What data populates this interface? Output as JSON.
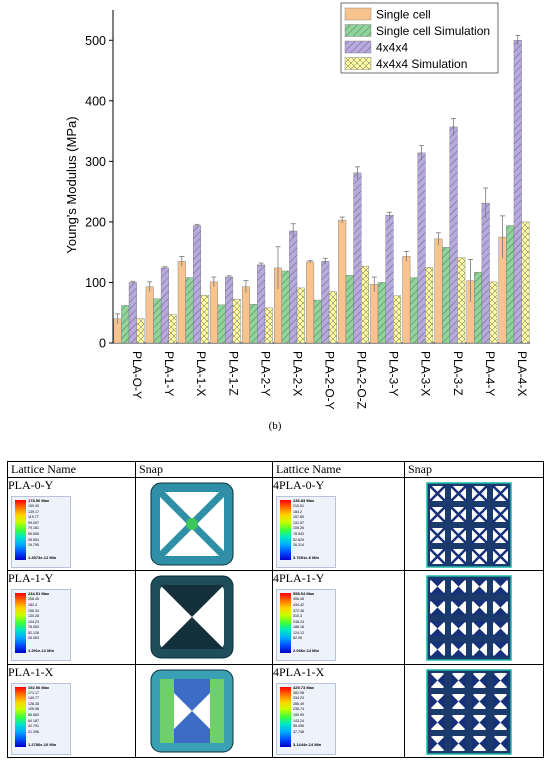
{
  "chart_data": {
    "type": "bar",
    "ylabel": "Young's Modulus (MPa)",
    "ylim": [
      0,
      550
    ],
    "yticks": [
      "0",
      "100",
      "200",
      "300",
      "400",
      "500"
    ],
    "categories": [
      "PLA-O-Y",
      "PLA-1-Y",
      "PLA-1-X",
      "PLA-1-Z",
      "PLA-2-Y",
      "PLA-2-X",
      "PLA-2-O-Y",
      "PLA-2-O-Z",
      "PLA-3-Y",
      "PLA-3-X",
      "PLA-3-Z",
      "PLA-4-Y",
      "PLA-4-X"
    ],
    "legend_position": "top-right",
    "series": [
      {
        "name": "Single cell",
        "color": "#f7c38f",
        "pattern": "plain",
        "values": [
          40,
          93,
          135,
          101,
          93,
          124,
          134,
          203,
          97,
          143,
          172,
          103,
          175
        ],
        "errors": [
          8,
          8,
          8,
          8,
          10,
          35,
          2,
          5,
          12,
          8,
          10,
          35,
          35
        ]
      },
      {
        "name": "Single cell Simulation",
        "color": "#8fd49a",
        "pattern": "diag",
        "values": [
          62,
          73,
          108,
          63,
          64,
          119,
          71,
          112,
          100,
          108,
          158,
          117,
          194
        ],
        "errors": [
          0,
          0,
          0,
          0,
          0,
          0,
          0,
          0,
          0,
          0,
          0,
          0,
          0
        ]
      },
      {
        "name": "4x4x4",
        "color": "#b8a9e0",
        "pattern": "diag",
        "values": [
          100,
          124,
          194,
          109,
          129,
          185,
          135,
          281,
          211,
          314,
          357,
          231,
          500
        ],
        "errors": [
          2,
          2,
          2,
          2,
          3,
          12,
          5,
          10,
          5,
          12,
          14,
          25,
          8
        ]
      },
      {
        "name": "4x4x4 Simulation",
        "color": "#fdfba0",
        "pattern": "cross",
        "values": [
          40,
          47,
          79,
          72,
          58,
          91,
          85,
          127,
          78,
          125,
          141,
          101,
          200
        ],
        "errors": [
          0,
          0,
          0,
          0,
          0,
          0,
          0,
          0,
          0,
          0,
          0,
          0,
          0
        ]
      }
    ]
  },
  "caption": "(b)",
  "table": {
    "headers": [
      "Lattice Name",
      "Snap",
      "Lattice Name",
      "Snap"
    ],
    "rows": [
      {
        "left_name": "PLA-0-Y",
        "left_max": "178.96 Max",
        "left_ticks": [
          "159.30",
          "139.17",
          "119.77",
          "99.097",
          "79.181",
          "59.506",
          "39.591",
          "19.795"
        ],
        "left_min": "1.4573e-12 Min",
        "right_name": "4PLA-0-Y",
        "right_max": "236.83 Max",
        "right_ticks": [
          "210.51",
          "184.2",
          "157.89",
          "131.57",
          "105.26",
          "78.943",
          "52.629",
          "26.314"
        ],
        "right_min": "3.7691e-6 Min"
      },
      {
        "left_name": "PLA-1-Y",
        "left_max": "234.51 Max",
        "left_ticks": [
          "208.45",
          "182.4",
          "156.34",
          "130.28",
          "104.23",
          "78.063",
          "52.126",
          "26.063"
        ],
        "left_min": "1.291e-12 Min",
        "right_name": "4PLA-1-Y",
        "right_max": "558.54 Max",
        "right_ticks": [
          "496.48",
          "434.42",
          "372.36",
          "310.3",
          "248.24",
          "186.18",
          "124.12",
          "62.06"
        ],
        "right_min": "2.036e-14 Min"
      },
      {
        "left_name": "PLA-1-X",
        "left_max": "192.56 Max",
        "left_ticks": [
          "171.17",
          "149.77",
          "128.38",
          "106.98",
          "85.583",
          "64.187",
          "42.791",
          "21.396"
        ],
        "left_min": "1.2786e-10 Min",
        "right_name": "4PLA-1-X",
        "right_max": "429.73 Max",
        "right_ticks": [
          "381.98",
          "334.23",
          "286.49",
          "238.74",
          "190.99",
          "143.24",
          "95.496",
          "47.748"
        ],
        "right_min": "3.1444e-14 Min"
      }
    ]
  }
}
